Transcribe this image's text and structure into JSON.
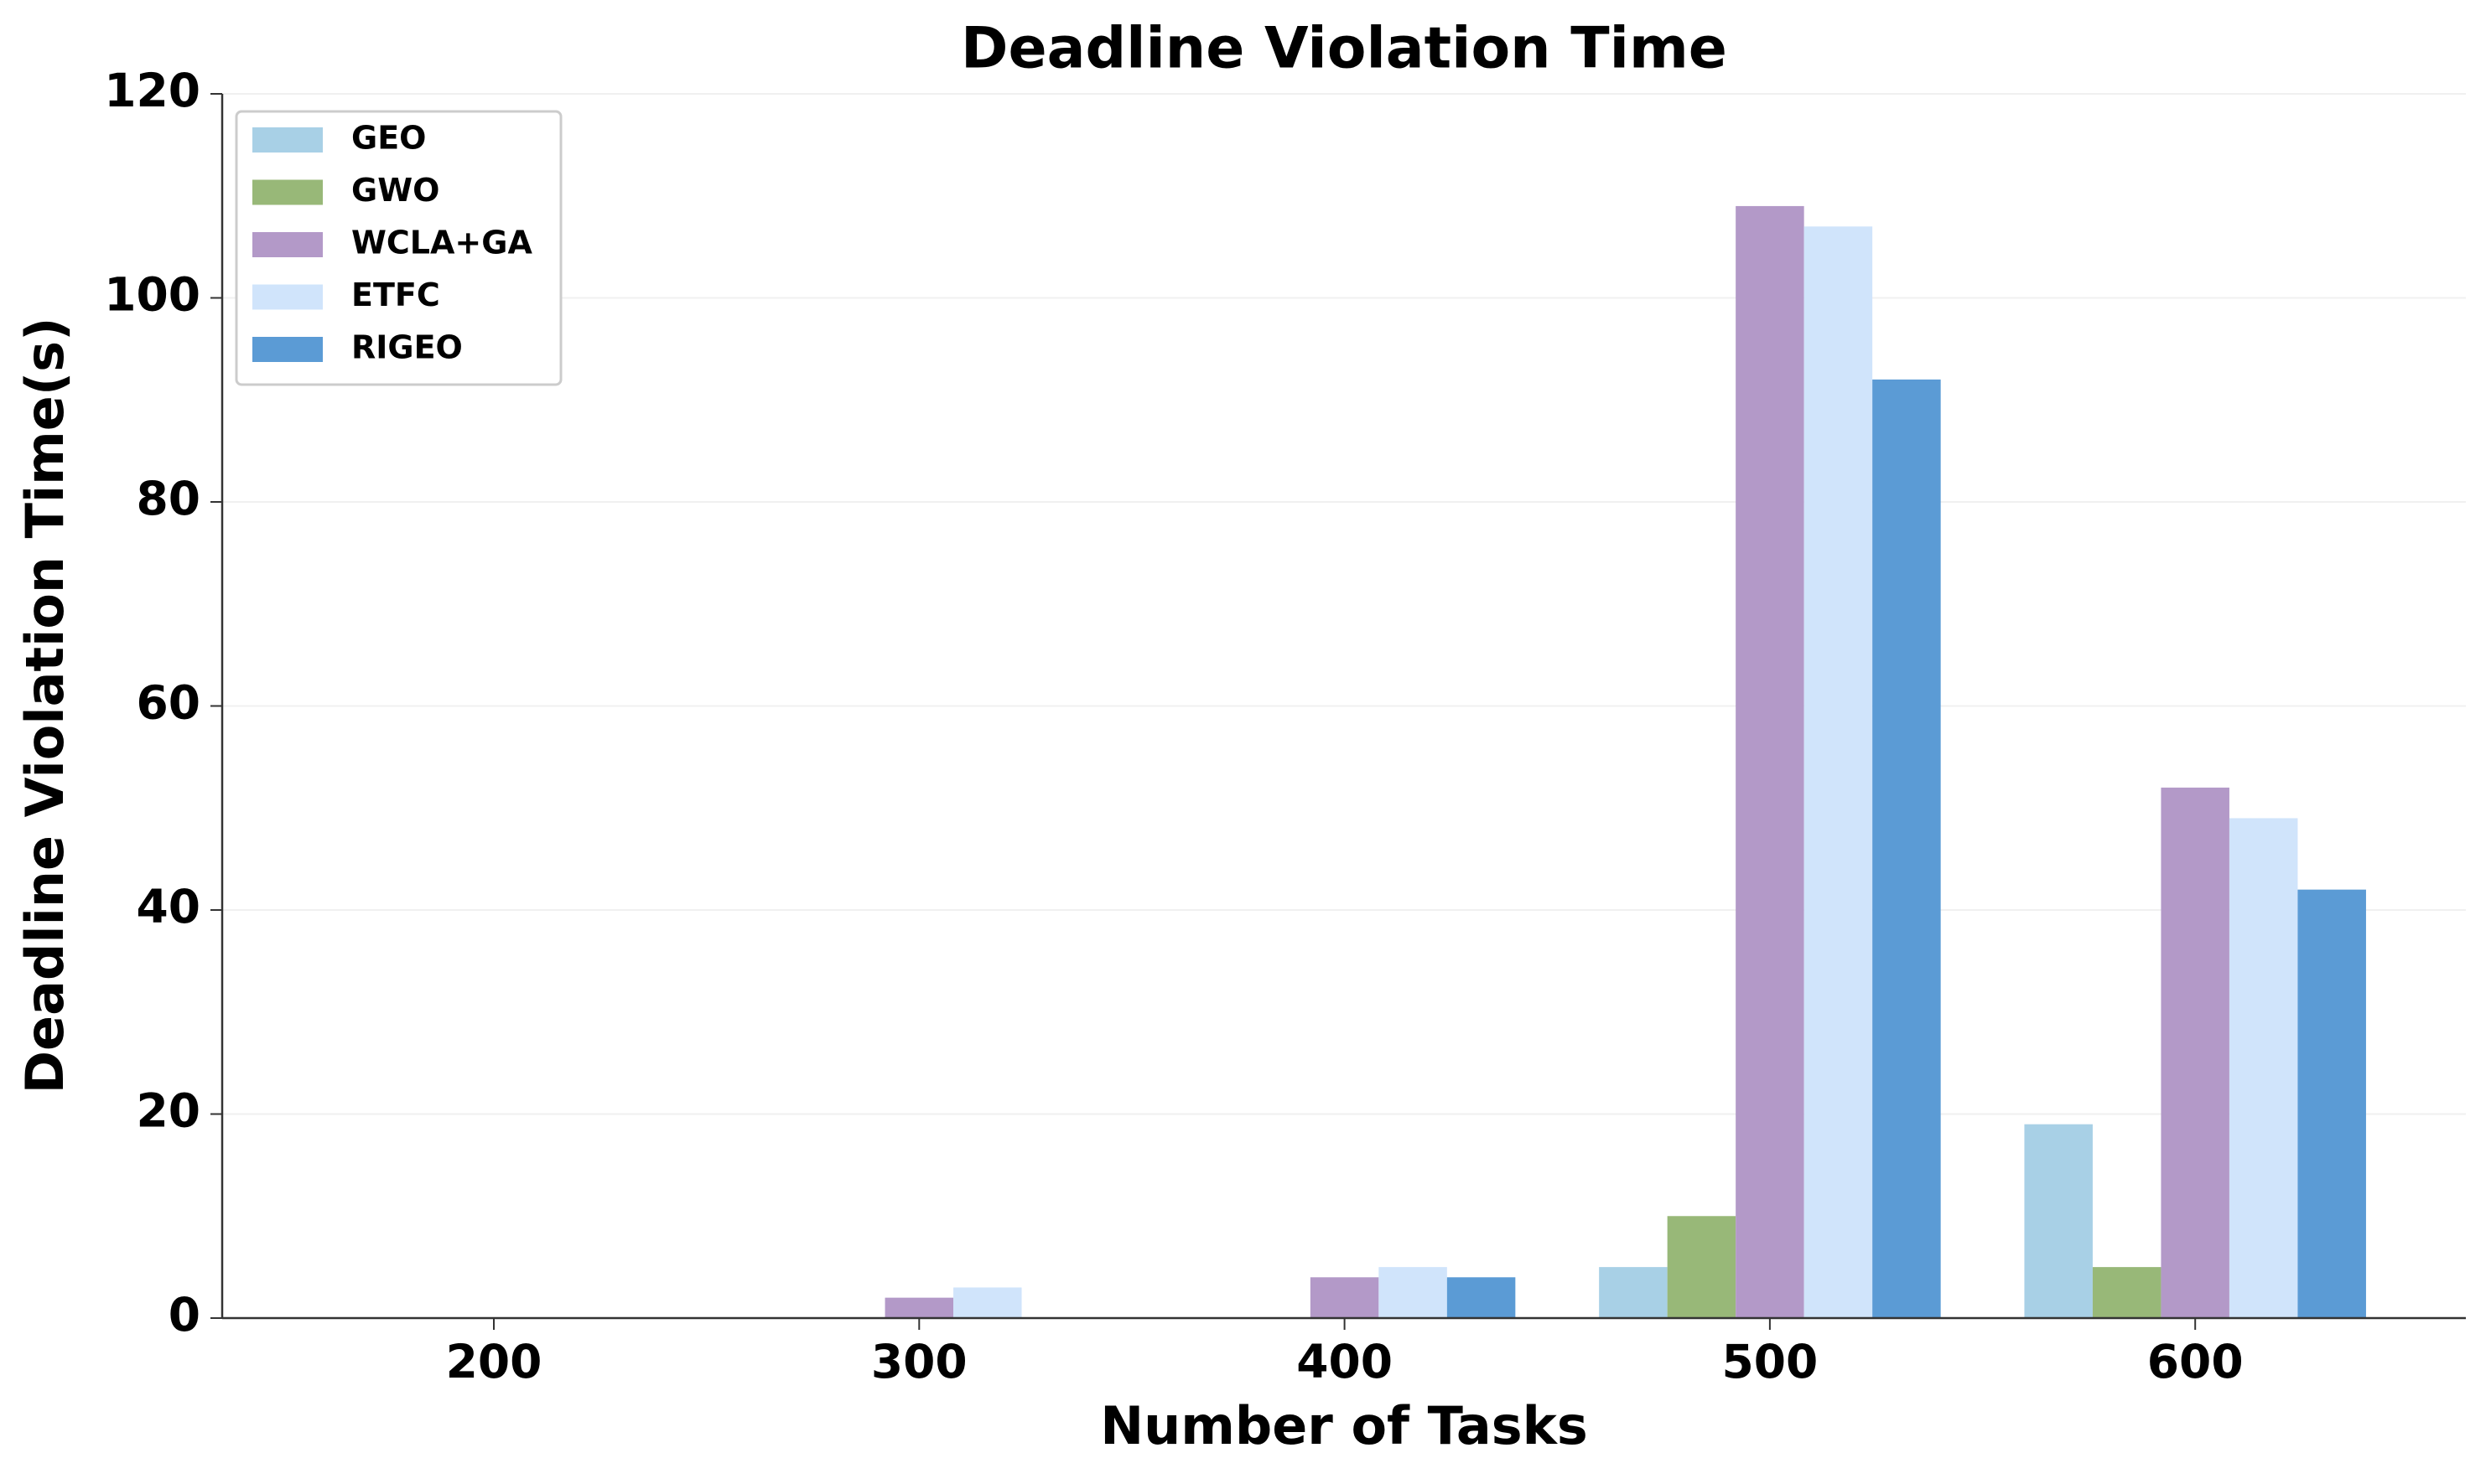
{
  "chart_data": {
    "type": "bar",
    "title": "Deadline Violation Time",
    "x_label": "Number of Tasks",
    "y_label": "Deadline Violation Time(s)",
    "categories": [
      "200",
      "300",
      "400",
      "500",
      "600"
    ],
    "series": [
      {
        "name": "GEO",
        "color": "#a8d0e6",
        "values": [
          0,
          0,
          0,
          5,
          19
        ]
      },
      {
        "name": "GWO",
        "color": "#98b878",
        "values": [
          0,
          0,
          0,
          10,
          5
        ]
      },
      {
        "name": "WCLA+GA",
        "color": "#b399c8",
        "values": [
          0,
          2,
          4,
          109,
          52
        ]
      },
      {
        "name": "ETFC",
        "color": "#d0e4fb",
        "values": [
          0,
          3,
          5,
          107,
          49
        ]
      },
      {
        "name": "RIGEO",
        "color": "#5b9bd5",
        "values": [
          0,
          0,
          4,
          92,
          42
        ]
      }
    ],
    "ylim": [
      0,
      120
    ],
    "yticks": [
      0,
      20,
      40,
      60,
      80,
      100,
      120
    ],
    "grid": true,
    "legend": "upper left"
  }
}
